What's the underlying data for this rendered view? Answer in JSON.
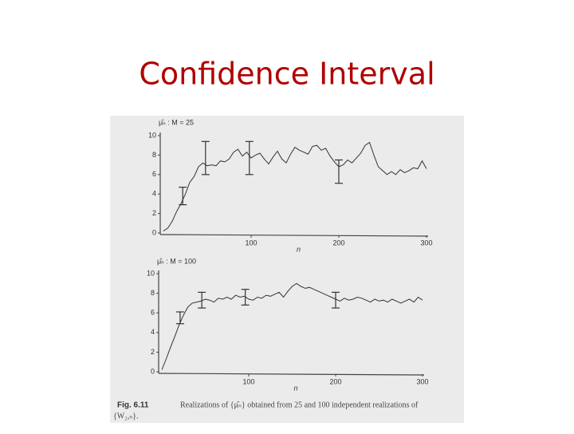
{
  "title": "Confidence Interval",
  "caption": {
    "label": "Fig. 6.11",
    "text": "Realizations of {μ̂ₙ} obtained from 25 and 100 independent realizations of",
    "continuation": "{W₂,ₙ}."
  },
  "chart_data": [
    {
      "type": "line",
      "y_label": "μ̂ₙ : M = 25",
      "x_label": "n",
      "xlim": [
        0,
        300
      ],
      "ylim": [
        0,
        10
      ],
      "xticks": [
        100,
        200,
        300
      ],
      "yticks": [
        0,
        2,
        4,
        6,
        8,
        10
      ],
      "x": [
        0,
        5,
        10,
        15,
        20,
        25,
        30,
        35,
        40,
        45,
        50,
        55,
        60,
        65,
        70,
        75,
        80,
        85,
        90,
        95,
        100,
        105,
        110,
        115,
        120,
        125,
        130,
        135,
        140,
        145,
        150,
        155,
        160,
        165,
        170,
        175,
        180,
        185,
        190,
        195,
        200,
        205,
        210,
        215,
        220,
        225,
        230,
        235,
        240,
        245,
        250,
        255,
        260,
        265,
        270,
        275,
        280,
        285,
        290,
        295,
        300
      ],
      "series": [
        {
          "color": "#333333",
          "values": [
            0.2,
            0.5,
            1.2,
            2.2,
            3.0,
            4.0,
            5.2,
            5.8,
            6.8,
            7.2,
            6.9,
            7.0,
            6.9,
            7.4,
            7.3,
            7.6,
            8.3,
            8.6,
            7.9,
            8.3,
            7.7,
            8.0,
            8.2,
            7.6,
            7.1,
            7.8,
            8.4,
            7.6,
            7.2,
            8.1,
            8.8,
            8.5,
            8.3,
            8.1,
            8.9,
            9.0,
            8.5,
            8.7,
            7.9,
            7.3,
            6.8,
            7.0,
            7.5,
            7.2,
            7.7,
            8.2,
            9.0,
            9.3,
            8.0,
            6.8,
            6.4,
            6.0,
            6.3,
            6.0,
            6.5,
            6.2,
            6.4,
            6.7,
            6.6,
            7.4,
            6.6
          ]
        }
      ],
      "error_bars": {
        "color": "#333333",
        "x": [
          22,
          48,
          98,
          200
        ],
        "values": [
          3.8,
          7.7,
          7.7,
          6.3
        ],
        "errors": [
          0.9,
          1.7,
          1.7,
          1.2
        ]
      }
    },
    {
      "type": "line",
      "y_label": "μ̂ₙ : M = 100",
      "x_label": "n",
      "xlim": [
        0,
        300
      ],
      "ylim": [
        0,
        10
      ],
      "xticks": [
        100,
        200,
        300
      ],
      "yticks": [
        0,
        2,
        4,
        6,
        8,
        10
      ],
      "x": [
        0,
        5,
        10,
        15,
        20,
        25,
        30,
        35,
        40,
        45,
        50,
        55,
        60,
        65,
        70,
        75,
        80,
        85,
        90,
        95,
        100,
        105,
        110,
        115,
        120,
        125,
        130,
        135,
        140,
        145,
        150,
        155,
        160,
        165,
        170,
        175,
        180,
        185,
        190,
        195,
        200,
        205,
        210,
        215,
        220,
        225,
        230,
        235,
        240,
        245,
        250,
        255,
        260,
        265,
        270,
        275,
        280,
        285,
        290,
        295,
        300
      ],
      "series": [
        {
          "color": "#333333",
          "values": [
            0.2,
            1.3,
            2.5,
            3.6,
            4.8,
            5.8,
            6.6,
            7.0,
            7.1,
            7.2,
            7.4,
            7.3,
            7.1,
            7.5,
            7.4,
            7.6,
            7.4,
            7.8,
            7.6,
            7.7,
            7.4,
            7.3,
            7.6,
            7.5,
            7.8,
            7.7,
            7.9,
            8.1,
            7.6,
            8.2,
            8.7,
            9.0,
            8.7,
            8.5,
            8.6,
            8.4,
            8.2,
            8.0,
            7.8,
            7.6,
            7.4,
            7.2,
            7.5,
            7.3,
            7.4,
            7.6,
            7.5,
            7.3,
            7.1,
            7.4,
            7.2,
            7.3,
            7.1,
            7.4,
            7.2,
            7.0,
            7.2,
            7.4,
            7.1,
            7.6,
            7.3
          ]
        }
      ],
      "error_bars": {
        "color": "#333333",
        "x": [
          21,
          46,
          96,
          200
        ],
        "values": [
          5.5,
          7.3,
          7.6,
          7.3
        ],
        "errors": [
          0.6,
          0.8,
          0.8,
          0.8
        ]
      }
    }
  ]
}
